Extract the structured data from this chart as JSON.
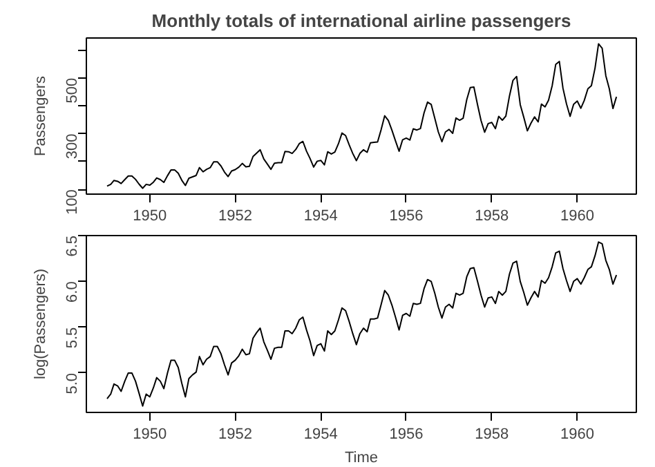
{
  "chart_data": [
    {
      "type": "line",
      "title": "Monthly totals of international airline passengers",
      "ylabel": "Passengers",
      "x": [
        "1949-01",
        "1949-02",
        "1949-03",
        "1949-04",
        "1949-05",
        "1949-06",
        "1949-07",
        "1949-08",
        "1949-09",
        "1949-10",
        "1949-11",
        "1949-12",
        "1950-01",
        "1950-02",
        "1950-03",
        "1950-04",
        "1950-05",
        "1950-06",
        "1950-07",
        "1950-08",
        "1950-09",
        "1950-10",
        "1950-11",
        "1950-12",
        "1951-01",
        "1951-02",
        "1951-03",
        "1951-04",
        "1951-05",
        "1951-06",
        "1951-07",
        "1951-08",
        "1951-09",
        "1951-10",
        "1951-11",
        "1951-12",
        "1952-01",
        "1952-02",
        "1952-03",
        "1952-04",
        "1952-05",
        "1952-06",
        "1952-07",
        "1952-08",
        "1952-09",
        "1952-10",
        "1952-11",
        "1952-12",
        "1953-01",
        "1953-02",
        "1953-03",
        "1953-04",
        "1953-05",
        "1953-06",
        "1953-07",
        "1953-08",
        "1953-09",
        "1953-10",
        "1953-11",
        "1953-12",
        "1954-01",
        "1954-02",
        "1954-03",
        "1954-04",
        "1954-05",
        "1954-06",
        "1954-07",
        "1954-08",
        "1954-09",
        "1954-10",
        "1954-11",
        "1954-12",
        "1955-01",
        "1955-02",
        "1955-03",
        "1955-04",
        "1955-05",
        "1955-06",
        "1955-07",
        "1955-08",
        "1955-09",
        "1955-10",
        "1955-11",
        "1955-12",
        "1956-01",
        "1956-02",
        "1956-03",
        "1956-04",
        "1956-05",
        "1956-06",
        "1956-07",
        "1956-08",
        "1956-09",
        "1956-10",
        "1956-11",
        "1956-12",
        "1957-01",
        "1957-02",
        "1957-03",
        "1957-04",
        "1957-05",
        "1957-06",
        "1957-07",
        "1957-08",
        "1957-09",
        "1957-10",
        "1957-11",
        "1957-12",
        "1958-01",
        "1958-02",
        "1958-03",
        "1958-04",
        "1958-05",
        "1958-06",
        "1958-07",
        "1958-08",
        "1958-09",
        "1958-10",
        "1958-11",
        "1958-12",
        "1959-01",
        "1959-02",
        "1959-03",
        "1959-04",
        "1959-05",
        "1959-06",
        "1959-07",
        "1959-08",
        "1959-09",
        "1959-10",
        "1959-11",
        "1959-12",
        "1960-01",
        "1960-02",
        "1960-03",
        "1960-04",
        "1960-05",
        "1960-06",
        "1960-07",
        "1960-08",
        "1960-09",
        "1960-10",
        "1960-11",
        "1960-12"
      ],
      "series": [
        {
          "color": "#000000",
          "values": [
            112,
            118,
            132,
            129,
            121,
            135,
            148,
            148,
            136,
            119,
            104,
            118,
            115,
            126,
            141,
            135,
            125,
            149,
            170,
            170,
            158,
            133,
            114,
            140,
            145,
            150,
            178,
            163,
            172,
            178,
            199,
            199,
            184,
            162,
            146,
            166,
            171,
            180,
            193,
            181,
            183,
            218,
            230,
            242,
            209,
            191,
            172,
            194,
            196,
            196,
            236,
            235,
            229,
            243,
            264,
            272,
            237,
            211,
            180,
            201,
            204,
            188,
            235,
            227,
            234,
            264,
            302,
            293,
            259,
            229,
            203,
            229,
            242,
            233,
            267,
            269,
            270,
            315,
            364,
            347,
            312,
            274,
            237,
            278,
            284,
            277,
            317,
            313,
            318,
            374,
            413,
            405,
            355,
            306,
            271,
            306,
            315,
            301,
            356,
            348,
            355,
            422,
            465,
            467,
            404,
            347,
            305,
            336,
            340,
            318,
            362,
            348,
            363,
            435,
            491,
            505,
            404,
            359,
            310,
            337,
            360,
            342,
            406,
            396,
            420,
            472,
            548,
            559,
            463,
            407,
            362,
            405,
            417,
            391,
            419,
            461,
            472,
            535,
            622,
            606,
            508,
            461,
            390,
            432
          ]
        }
      ],
      "xlim": [
        "1948-07-08",
        "1961-05-20"
      ],
      "xticks": [
        {
          "value": "1950-01-01",
          "label": "1950"
        },
        {
          "value": "1952-01-01",
          "label": "1952"
        },
        {
          "value": "1954-01-01",
          "label": "1954"
        },
        {
          "value": "1956-01-01",
          "label": "1956"
        },
        {
          "value": "1958-01-01",
          "label": "1958"
        },
        {
          "value": "1960-01-01",
          "label": "1960"
        }
      ],
      "ylim": [
        83,
        643
      ],
      "yticks": [
        100,
        {
          "value": 200,
          "label": null
        },
        300,
        {
          "value": 400,
          "label": null
        },
        500,
        {
          "value": 600,
          "label": null
        }
      ],
      "grid": false,
      "line_style": "solid",
      "marker": "none"
    },
    {
      "type": "line",
      "xlabel": "Time",
      "ylabel": "log(Passengers)",
      "x": [
        "1949-01",
        "1949-02",
        "1949-03",
        "1949-04",
        "1949-05",
        "1949-06",
        "1949-07",
        "1949-08",
        "1949-09",
        "1949-10",
        "1949-11",
        "1949-12",
        "1950-01",
        "1950-02",
        "1950-03",
        "1950-04",
        "1950-05",
        "1950-06",
        "1950-07",
        "1950-08",
        "1950-09",
        "1950-10",
        "1950-11",
        "1950-12",
        "1951-01",
        "1951-02",
        "1951-03",
        "1951-04",
        "1951-05",
        "1951-06",
        "1951-07",
        "1951-08",
        "1951-09",
        "1951-10",
        "1951-11",
        "1951-12",
        "1952-01",
        "1952-02",
        "1952-03",
        "1952-04",
        "1952-05",
        "1952-06",
        "1952-07",
        "1952-08",
        "1952-09",
        "1952-10",
        "1952-11",
        "1952-12",
        "1953-01",
        "1953-02",
        "1953-03",
        "1953-04",
        "1953-05",
        "1953-06",
        "1953-07",
        "1953-08",
        "1953-09",
        "1953-10",
        "1953-11",
        "1953-12",
        "1954-01",
        "1954-02",
        "1954-03",
        "1954-04",
        "1954-05",
        "1954-06",
        "1954-07",
        "1954-08",
        "1954-09",
        "1954-10",
        "1954-11",
        "1954-12",
        "1955-01",
        "1955-02",
        "1955-03",
        "1955-04",
        "1955-05",
        "1955-06",
        "1955-07",
        "1955-08",
        "1955-09",
        "1955-10",
        "1955-11",
        "1955-12",
        "1956-01",
        "1956-02",
        "1956-03",
        "1956-04",
        "1956-05",
        "1956-06",
        "1956-07",
        "1956-08",
        "1956-09",
        "1956-10",
        "1956-11",
        "1956-12",
        "1957-01",
        "1957-02",
        "1957-03",
        "1957-04",
        "1957-05",
        "1957-06",
        "1957-07",
        "1957-08",
        "1957-09",
        "1957-10",
        "1957-11",
        "1957-12",
        "1958-01",
        "1958-02",
        "1958-03",
        "1958-04",
        "1958-05",
        "1958-06",
        "1958-07",
        "1958-08",
        "1958-09",
        "1958-10",
        "1958-11",
        "1958-12",
        "1959-01",
        "1959-02",
        "1959-03",
        "1959-04",
        "1959-05",
        "1959-06",
        "1959-07",
        "1959-08",
        "1959-09",
        "1959-10",
        "1959-11",
        "1959-12",
        "1960-01",
        "1960-02",
        "1960-03",
        "1960-04",
        "1960-05",
        "1960-06",
        "1960-07",
        "1960-08",
        "1960-09",
        "1960-10",
        "1960-11",
        "1960-12"
      ],
      "series": [
        {
          "color": "#000000",
          "values": [
            4.72,
            4.77,
            4.88,
            4.86,
            4.8,
            4.91,
            5.0,
            5.0,
            4.91,
            4.78,
            4.64,
            4.77,
            4.74,
            4.84,
            4.95,
            4.91,
            4.83,
            5.0,
            5.14,
            5.14,
            5.06,
            4.89,
            4.74,
            4.94,
            4.98,
            5.01,
            5.18,
            5.09,
            5.15,
            5.18,
            5.29,
            5.29,
            5.21,
            5.09,
            4.98,
            5.11,
            5.14,
            5.19,
            5.26,
            5.2,
            5.21,
            5.38,
            5.44,
            5.49,
            5.34,
            5.25,
            5.15,
            5.27,
            5.28,
            5.28,
            5.46,
            5.46,
            5.43,
            5.49,
            5.58,
            5.61,
            5.47,
            5.35,
            5.19,
            5.3,
            5.32,
            5.24,
            5.46,
            5.42,
            5.46,
            5.58,
            5.71,
            5.68,
            5.56,
            5.43,
            5.31,
            5.43,
            5.49,
            5.45,
            5.59,
            5.59,
            5.6,
            5.75,
            5.9,
            5.85,
            5.74,
            5.61,
            5.47,
            5.63,
            5.65,
            5.62,
            5.76,
            5.75,
            5.76,
            5.92,
            6.02,
            6.0,
            5.87,
            5.72,
            5.6,
            5.72,
            5.75,
            5.71,
            5.87,
            5.85,
            5.87,
            6.05,
            6.14,
            6.15,
            6.0,
            5.85,
            5.72,
            5.82,
            5.83,
            5.76,
            5.89,
            5.85,
            5.89,
            6.08,
            6.2,
            6.22,
            6.0,
            5.88,
            5.74,
            5.82,
            5.89,
            5.83,
            6.01,
            5.98,
            6.04,
            6.16,
            6.31,
            6.33,
            6.14,
            6.01,
            5.89,
            6.0,
            6.03,
            5.97,
            6.04,
            6.13,
            6.16,
            6.28,
            6.43,
            6.41,
            6.23,
            6.13,
            5.97,
            6.07
          ]
        }
      ],
      "xlim": [
        "1948-07-08",
        "1961-05-20"
      ],
      "xticks": [
        {
          "value": "1950-01-01",
          "label": "1950"
        },
        {
          "value": "1952-01-01",
          "label": "1952"
        },
        {
          "value": "1954-01-01",
          "label": "1954"
        },
        {
          "value": "1956-01-01",
          "label": "1956"
        },
        {
          "value": "1958-01-01",
          "label": "1958"
        },
        {
          "value": "1960-01-01",
          "label": "1960"
        }
      ],
      "ylim": [
        4.57,
        6.5
      ],
      "yticks": [
        {
          "value": 5.0,
          "label": "5.0"
        },
        {
          "value": 5.5,
          "label": "5.5"
        },
        {
          "value": 6.0,
          "label": "6.0"
        },
        {
          "value": 6.5,
          "label": "6.5"
        }
      ],
      "grid": false,
      "line_style": "solid",
      "marker": "none"
    }
  ]
}
